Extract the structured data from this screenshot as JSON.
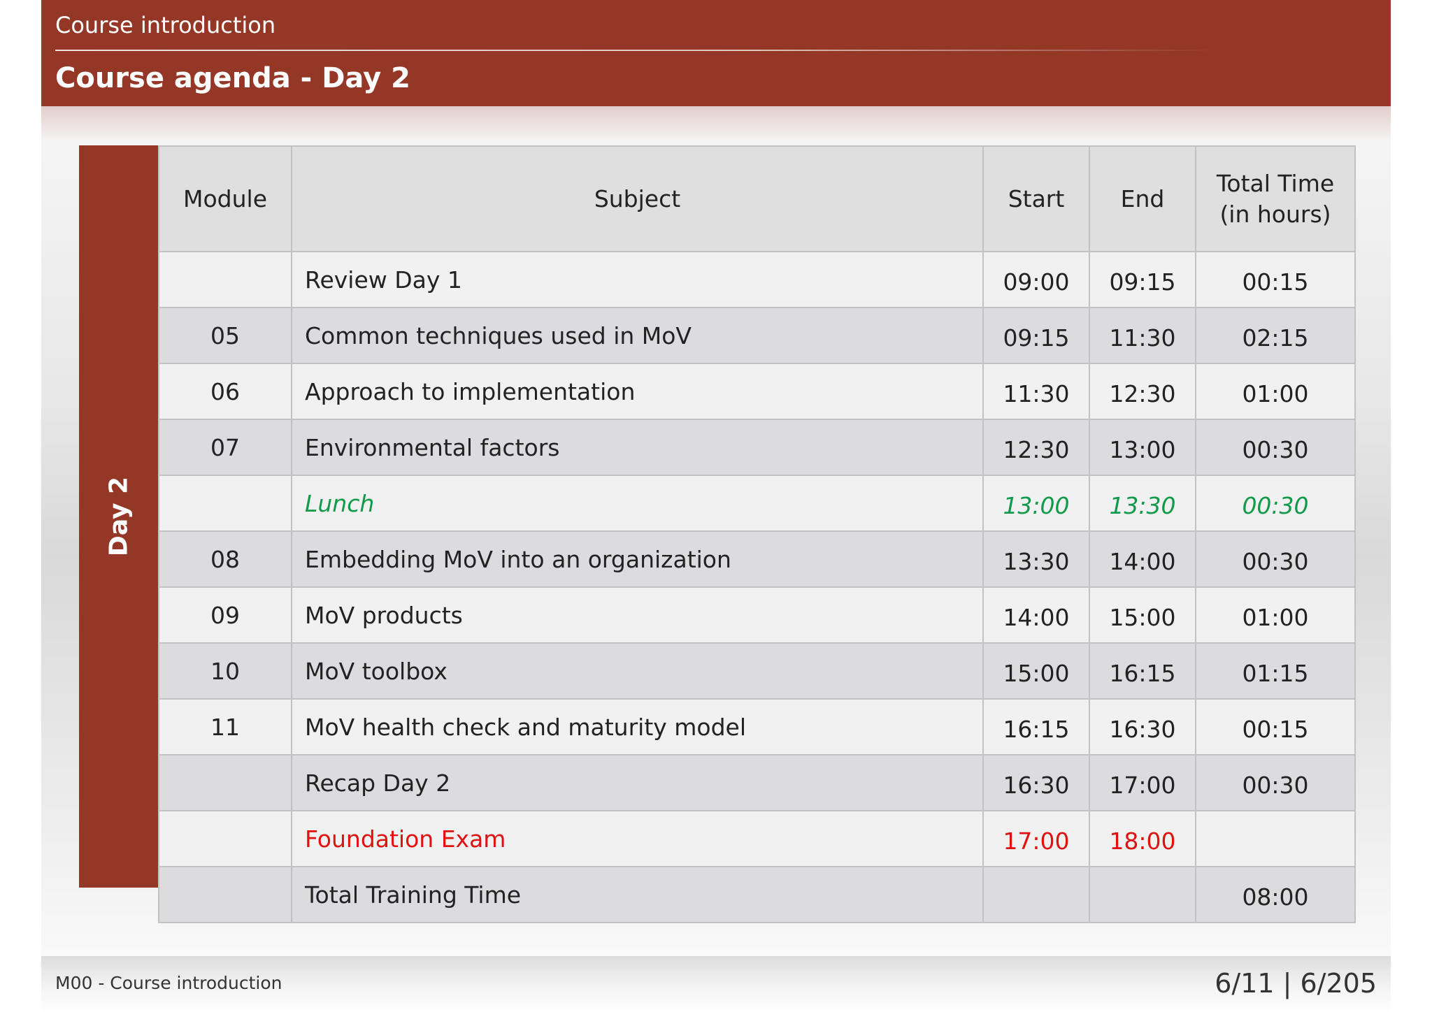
{
  "header": {
    "section": "Course introduction",
    "title": "Course agenda - Day 2"
  },
  "day_label": "Day 2",
  "table": {
    "headers": {
      "module": "Module",
      "subject": "Subject",
      "start": "Start",
      "end": "End",
      "total_line1": "Total Time",
      "total_line2": "(in hours)"
    },
    "rows": [
      {
        "module": "",
        "subject": "Review Day 1",
        "start": "09:00",
        "end": "09:15",
        "total": "00:15"
      },
      {
        "module": "05",
        "subject": "Common techniques used in MoV",
        "start": "09:15",
        "end": "11:30",
        "total": "02:15"
      },
      {
        "module": "06",
        "subject": "Approach to implementation",
        "start": "11:30",
        "end": "12:30",
        "total": "01:00"
      },
      {
        "module": "07",
        "subject": "Environmental factors",
        "start": "12:30",
        "end": "13:00",
        "total": "00:30"
      },
      {
        "module": "",
        "subject": "Lunch",
        "start": "13:00",
        "end": "13:30",
        "total": "00:30"
      },
      {
        "module": "08",
        "subject": "Embedding MoV into an organization",
        "start": "13:30",
        "end": "14:00",
        "total": "00:30"
      },
      {
        "module": "09",
        "subject": "MoV products",
        "start": "14:00",
        "end": "15:00",
        "total": "01:00"
      },
      {
        "module": "10",
        "subject": "MoV toolbox",
        "start": "15:00",
        "end": "16:15",
        "total": "01:15"
      },
      {
        "module": "11",
        "subject": "MoV health check and maturity model",
        "start": "16:15",
        "end": "16:30",
        "total": "00:15"
      },
      {
        "module": "",
        "subject": "Recap Day 2",
        "start": "16:30",
        "end": "17:00",
        "total": "00:30"
      },
      {
        "module": "",
        "subject": "Foundation Exam",
        "start": "17:00",
        "end": "18:00",
        "total": ""
      },
      {
        "module": "",
        "subject": "Total Training Time",
        "start": "",
        "end": "",
        "total": "08:00"
      }
    ]
  },
  "colors": {
    "brand": "#953726",
    "lunch": "#109a4a",
    "exam": "#e01111"
  },
  "footer": {
    "module": "M00 - Course introduction",
    "page": "6/11 | 6/205"
  }
}
